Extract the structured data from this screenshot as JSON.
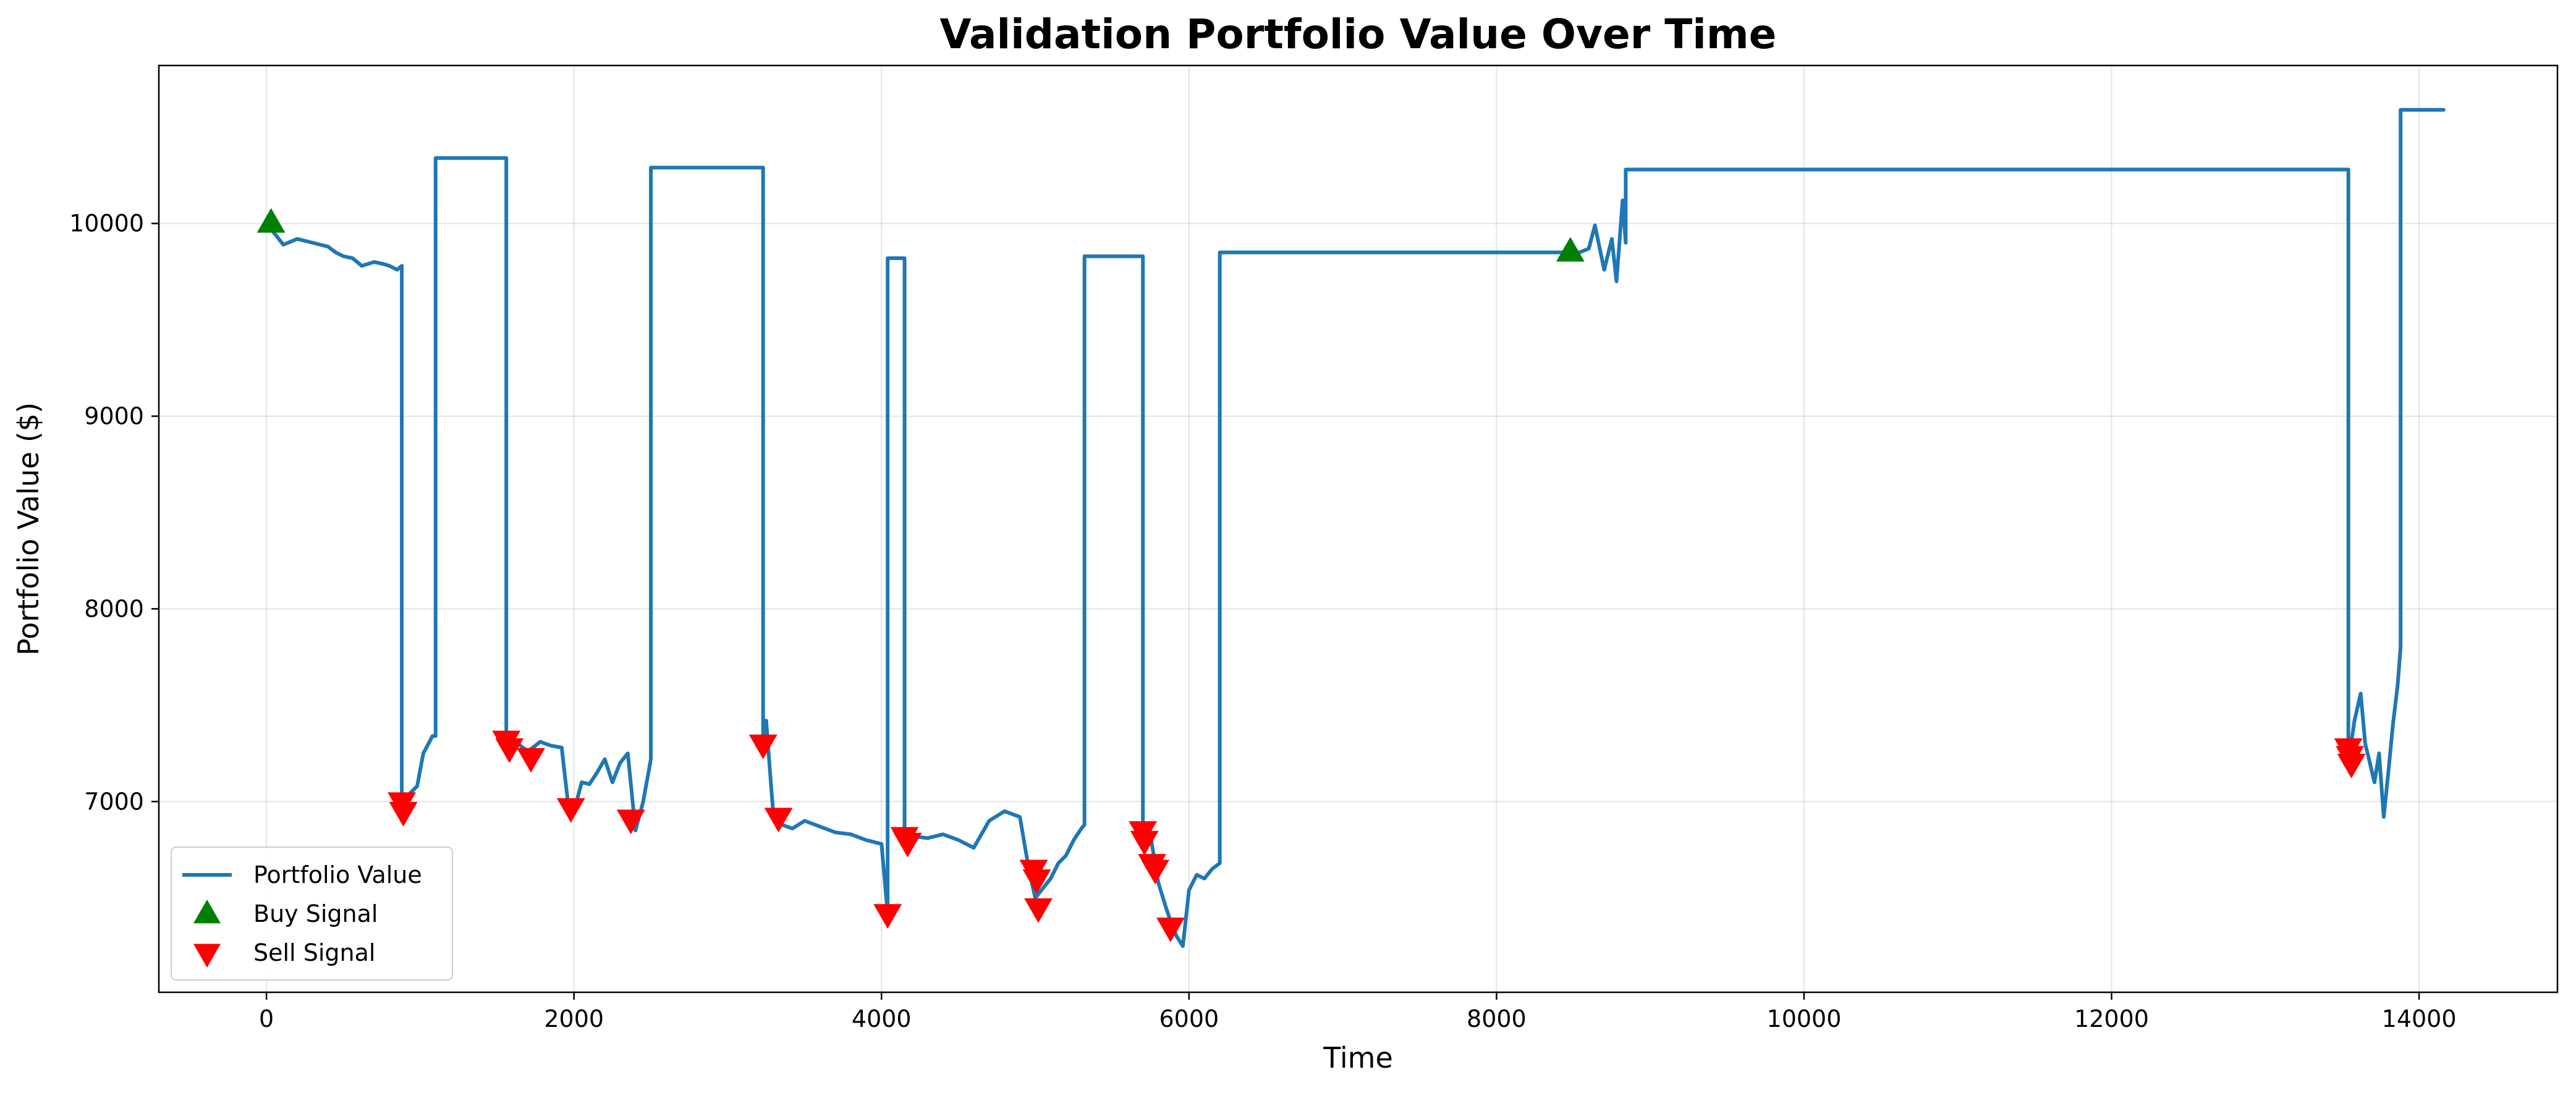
{
  "chart_data": {
    "type": "line",
    "title": "Validation Portfolio Value Over Time",
    "xlabel": "Time",
    "ylabel": "Portfolio Value ($)",
    "xlim": [
      -700,
      14900
    ],
    "ylim": [
      6010,
      10820
    ],
    "xticks": [
      0,
      2000,
      4000,
      6000,
      8000,
      10000,
      12000,
      14000
    ],
    "yticks": [
      7000,
      8000,
      9000,
      10000
    ],
    "grid": true,
    "legend_position": "lower-left",
    "series": [
      {
        "name": "Portfolio Value",
        "color": "#1f77b4",
        "x": [
          0,
          60,
          110,
          200,
          300,
          400,
          450,
          500,
          560,
          620,
          700,
          760,
          800,
          850,
          880,
          880,
          930,
          980,
          1020,
          1060,
          1080,
          1100,
          1100,
          1560,
          1560,
          1620,
          1700,
          1780,
          1850,
          1920,
          1960,
          2000,
          2050,
          2100,
          2150,
          2200,
          2250,
          2300,
          2350,
          2400,
          2450,
          2500,
          2500,
          3230,
          3230,
          3250,
          3280,
          3300,
          3320,
          3350,
          3420,
          3500,
          3600,
          3700,
          3800,
          3900,
          4000,
          4040,
          4040,
          4150,
          4150,
          4200,
          4300,
          4400,
          4500,
          4600,
          4700,
          4800,
          4900,
          4960,
          5000,
          5050,
          5100,
          5150,
          5200,
          5250,
          5300,
          5320,
          5320,
          5700,
          5700,
          5750,
          5800,
          5850,
          5880,
          5920,
          5960,
          6000,
          6050,
          6100,
          6150,
          6200,
          6200,
          8480,
          8480,
          8540,
          8600,
          8640,
          8700,
          8750,
          8780,
          8820,
          8840,
          8840,
          13540,
          13540,
          13580,
          13620,
          13650,
          13680,
          13710,
          13740,
          13770,
          13800,
          13830,
          13860,
          13880,
          13880,
          14160
        ],
        "y": [
          10000,
          9940,
          9890,
          9920,
          9900,
          9880,
          9850,
          9830,
          9820,
          9780,
          9800,
          9790,
          9780,
          9760,
          9780,
          7000,
          7040,
          7080,
          7250,
          7310,
          7340,
          7340,
          10340,
          10340,
          7300,
          7310,
          7260,
          7310,
          7290,
          7280,
          7000,
          6950,
          7100,
          7090,
          7150,
          7220,
          7100,
          7200,
          7250,
          6850,
          7000,
          7220,
          10290,
          10290,
          7300,
          7420,
          7100,
          6900,
          6950,
          6880,
          6860,
          6900,
          6870,
          6840,
          6830,
          6800,
          6780,
          6420,
          9820,
          9820,
          6850,
          6820,
          6810,
          6830,
          6800,
          6760,
          6900,
          6950,
          6920,
          6640,
          6500,
          6550,
          6600,
          6680,
          6720,
          6800,
          6860,
          6880,
          9830,
          9830,
          6860,
          6820,
          6580,
          6450,
          6380,
          6300,
          6250,
          6540,
          6620,
          6600,
          6650,
          6680,
          9850,
          9850,
          9840,
          9850,
          9870,
          9990,
          9760,
          9920,
          9700,
          10120,
          9900,
          10280,
          10280,
          7200,
          7420,
          7560,
          7300,
          7200,
          7100,
          7250,
          6920,
          7150,
          7400,
          7600,
          7800,
          10590,
          10590
        ]
      }
    ],
    "markers": [
      {
        "name": "Buy Signal",
        "symbol": "triangle-up",
        "color": "#008000",
        "points": [
          [
            30,
            10000
          ],
          [
            8480,
            9850
          ]
        ]
      },
      {
        "name": "Sell Signal",
        "symbol": "triangle-down",
        "color": "#ff0000",
        "points": [
          [
            880,
            7000
          ],
          [
            890,
            6950
          ],
          [
            1560,
            7320
          ],
          [
            1580,
            7280
          ],
          [
            1720,
            7230
          ],
          [
            1980,
            6970
          ],
          [
            2370,
            6910
          ],
          [
            3230,
            7300
          ],
          [
            3330,
            6920
          ],
          [
            4040,
            6420
          ],
          [
            4150,
            6820
          ],
          [
            4170,
            6790
          ],
          [
            4990,
            6650
          ],
          [
            5010,
            6600
          ],
          [
            5020,
            6450
          ],
          [
            5700,
            6850
          ],
          [
            5710,
            6800
          ],
          [
            5760,
            6680
          ],
          [
            5780,
            6650
          ],
          [
            5880,
            6350
          ],
          [
            13540,
            7280
          ],
          [
            13550,
            7240
          ],
          [
            13560,
            7200
          ]
        ]
      }
    ]
  }
}
